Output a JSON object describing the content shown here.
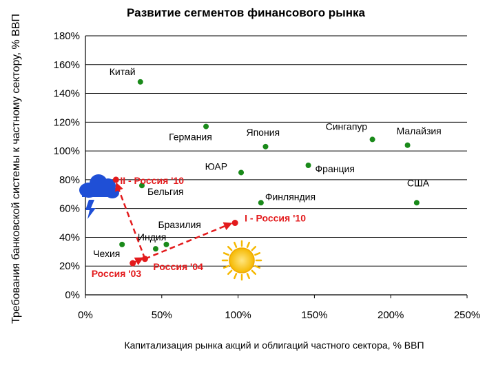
{
  "chart_data": {
    "type": "scatter",
    "title": "Развитие сегментов финансового рынка",
    "xlabel": "Капитализация рынка акций и облигаций частного сектора, % ВВП",
    "ylabel": "Требования банковской системы к частному сектору, % ВВП",
    "xlim": [
      0,
      250
    ],
    "ylim": [
      0,
      180
    ],
    "x_ticks": [
      "0%",
      "50%",
      "100%",
      "150%",
      "200%",
      "250%"
    ],
    "y_ticks": [
      "0%",
      "20%",
      "40%",
      "60%",
      "80%",
      "100%",
      "120%",
      "140%",
      "160%",
      "180%"
    ],
    "grid": "horizontal",
    "colors": {
      "countries": "#1a8a1a",
      "russia": "#e31a1c",
      "grid": "#000000"
    },
    "points": [
      {
        "label": "Китай",
        "x": 36,
        "y": 148
      },
      {
        "label": "Германия",
        "x": 79,
        "y": 117
      },
      {
        "label": "Япония",
        "x": 118,
        "y": 103
      },
      {
        "label": "ЮАР",
        "x": 102,
        "y": 85
      },
      {
        "label": "Франция",
        "x": 146,
        "y": 90
      },
      {
        "label": "Сингапур",
        "x": 188,
        "y": 108
      },
      {
        "label": "Малайзия",
        "x": 211,
        "y": 104
      },
      {
        "label": "США",
        "x": 217,
        "y": 64
      },
      {
        "label": "Финляндия",
        "x": 115,
        "y": 64
      },
      {
        "label": "Бельгия",
        "x": 37,
        "y": 76
      },
      {
        "label": "Бразилия",
        "x": 53,
        "y": 35
      },
      {
        "label": "Индия",
        "x": 46,
        "y": 32
      },
      {
        "label": "Чехия",
        "x": 24,
        "y": 35
      }
    ],
    "russia_series": [
      {
        "label": "Россия '03",
        "x": 31,
        "y": 22
      },
      {
        "label": "Россия '04",
        "x": 39,
        "y": 25
      },
      {
        "label": "I - Россия '10",
        "x": 98,
        "y": 50
      },
      {
        "label": "II - Россия '10",
        "x": 20,
        "y": 80
      }
    ],
    "icons": [
      "storm-cloud-icon",
      "sun-icon"
    ]
  }
}
